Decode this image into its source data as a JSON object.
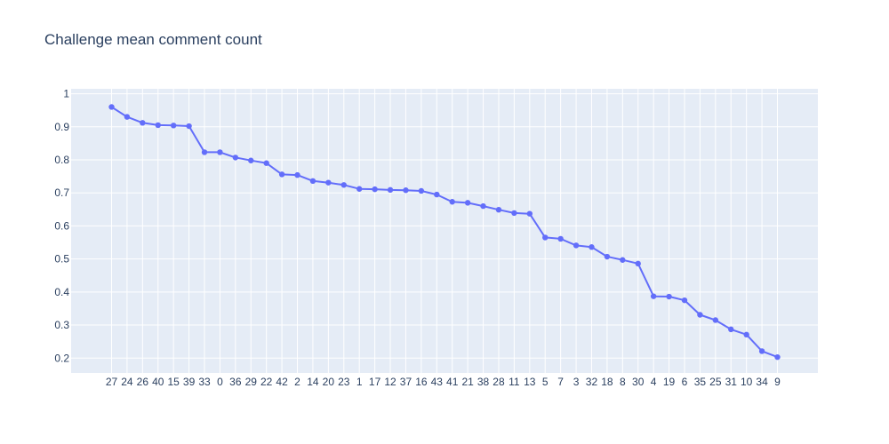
{
  "chart_data": {
    "type": "line",
    "title": "Challenge mean comment count",
    "xlabel": "",
    "ylabel": "",
    "categories": [
      "27",
      "24",
      "26",
      "40",
      "15",
      "39",
      "33",
      "0",
      "36",
      "29",
      "22",
      "42",
      "2",
      "14",
      "20",
      "23",
      "1",
      "17",
      "12",
      "37",
      "16",
      "43",
      "41",
      "21",
      "38",
      "28",
      "11",
      "13",
      "5",
      "7",
      "3",
      "32",
      "18",
      "8",
      "30",
      "4",
      "19",
      "6",
      "35",
      "25",
      "31",
      "10",
      "34",
      "9"
    ],
    "series": [
      {
        "values": [
          0.96,
          0.93,
          0.912,
          0.905,
          0.904,
          0.902,
          0.823,
          0.823,
          0.807,
          0.798,
          0.79,
          0.756,
          0.754,
          0.736,
          0.731,
          0.724,
          0.712,
          0.711,
          0.709,
          0.708,
          0.706,
          0.695,
          0.673,
          0.67,
          0.66,
          0.649,
          0.639,
          0.637,
          0.565,
          0.561,
          0.541,
          0.536,
          0.507,
          0.497,
          0.486,
          0.387,
          0.386,
          0.375,
          0.331,
          0.315,
          0.287,
          0.271,
          0.221,
          0.203
        ]
      }
    ],
    "ylim": [
      0.155,
      1.015
    ],
    "yticks": [
      "0.2",
      "0.3",
      "0.4",
      "0.5",
      "0.6",
      "0.7",
      "0.8",
      "0.9",
      "1"
    ],
    "grid": true,
    "legend": "none",
    "colors": {
      "line": "#636efa",
      "plot_bg": "#e5ecf6",
      "grid": "#ffffff",
      "text": "#2a3f5f"
    }
  }
}
